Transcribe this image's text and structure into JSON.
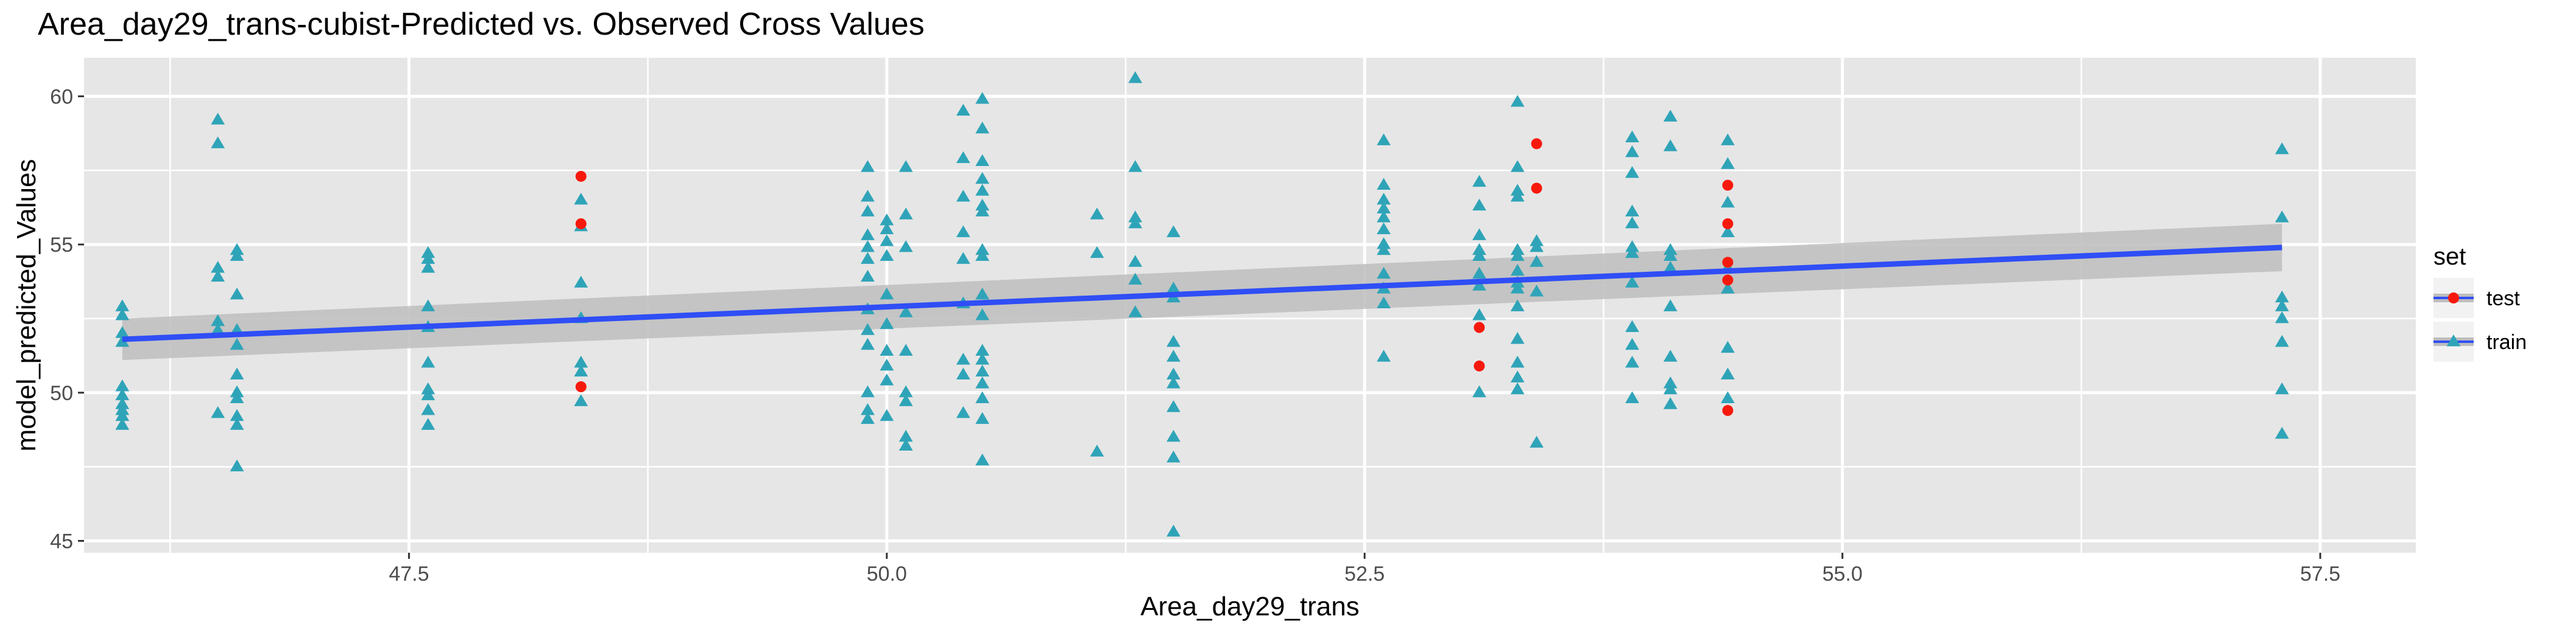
{
  "chart_data": {
    "type": "scatter",
    "title": "Area_day29_trans-cubist-Predicted vs. Observed Cross Values",
    "xlabel": "Area_day29_trans",
    "ylabel": "model_predicted_Values",
    "xlim": [
      45.8,
      58.0
    ],
    "ylim": [
      44.6,
      61.3
    ],
    "x_ticks": [
      47.5,
      50.0,
      52.5,
      55.0,
      57.5
    ],
    "x_tick_labels": [
      "47.5",
      "50.0",
      "52.5",
      "55.0",
      "57.5"
    ],
    "y_ticks": [
      45,
      50,
      55,
      60
    ],
    "y_tick_labels": [
      "45",
      "50",
      "55",
      "60"
    ],
    "grid": true,
    "legend": {
      "title": "set",
      "position": "right",
      "entries": [
        {
          "label": "test",
          "shape": "circle",
          "color": "#f8190d"
        },
        {
          "label": "train",
          "shape": "triangle",
          "color": "#2fa4b8"
        }
      ]
    },
    "colors": {
      "test": "#f8190d",
      "train": "#2fa4b8",
      "trend": "#2f4ef5",
      "band": "#bdbdbd",
      "panel": "#e6e6e6",
      "grid": "#ffffff"
    },
    "trend_line": {
      "x": [
        46.0,
        57.3
      ],
      "y": [
        51.8,
        54.9
      ],
      "ci_lower": [
        51.1,
        54.1
      ],
      "ci_upper": [
        52.5,
        55.7
      ]
    },
    "series": [
      {
        "name": "test",
        "shape": "circle",
        "points": [
          [
            48.4,
            57.3
          ],
          [
            48.4,
            55.7
          ],
          [
            48.4,
            50.2
          ],
          [
            53.1,
            52.2
          ],
          [
            53.1,
            50.9
          ],
          [
            53.4,
            58.4
          ],
          [
            53.4,
            56.9
          ],
          [
            54.4,
            57.0
          ],
          [
            54.4,
            55.7
          ],
          [
            54.4,
            54.4
          ],
          [
            54.4,
            53.8
          ],
          [
            54.4,
            49.4
          ]
        ]
      },
      {
        "name": "train",
        "shape": "triangle",
        "points": [
          [
            46.0,
            52.9
          ],
          [
            46.0,
            52.6
          ],
          [
            46.0,
            52.0
          ],
          [
            46.0,
            51.7
          ],
          [
            46.0,
            50.2
          ],
          [
            46.0,
            49.9
          ],
          [
            46.0,
            49.6
          ],
          [
            46.0,
            49.4
          ],
          [
            46.0,
            49.2
          ],
          [
            46.0,
            48.9
          ],
          [
            46.5,
            59.2
          ],
          [
            46.5,
            58.4
          ],
          [
            46.5,
            54.2
          ],
          [
            46.5,
            53.9
          ],
          [
            46.5,
            52.4
          ],
          [
            46.5,
            52.1
          ],
          [
            46.5,
            49.3
          ],
          [
            46.6,
            54.8
          ],
          [
            46.6,
            54.6
          ],
          [
            46.6,
            53.3
          ],
          [
            46.6,
            52.1
          ],
          [
            46.6,
            51.6
          ],
          [
            46.6,
            50.6
          ],
          [
            46.6,
            50.0
          ],
          [
            46.6,
            49.8
          ],
          [
            46.6,
            49.2
          ],
          [
            46.6,
            48.9
          ],
          [
            46.6,
            47.5
          ],
          [
            47.6,
            54.7
          ],
          [
            47.6,
            54.5
          ],
          [
            47.6,
            54.2
          ],
          [
            47.6,
            52.9
          ],
          [
            47.6,
            52.2
          ],
          [
            47.6,
            51.0
          ],
          [
            47.6,
            50.1
          ],
          [
            47.6,
            49.9
          ],
          [
            47.6,
            49.4
          ],
          [
            47.6,
            48.9
          ],
          [
            48.4,
            56.5
          ],
          [
            48.4,
            55.6
          ],
          [
            48.4,
            53.7
          ],
          [
            48.4,
            52.5
          ],
          [
            48.4,
            51.0
          ],
          [
            48.4,
            50.7
          ],
          [
            48.4,
            49.7
          ],
          [
            49.9,
            57.6
          ],
          [
            49.9,
            56.6
          ],
          [
            49.9,
            56.1
          ],
          [
            49.9,
            55.3
          ],
          [
            49.9,
            54.9
          ],
          [
            49.9,
            54.5
          ],
          [
            49.9,
            53.9
          ],
          [
            49.9,
            52.8
          ],
          [
            49.9,
            52.1
          ],
          [
            49.9,
            51.6
          ],
          [
            49.9,
            50.0
          ],
          [
            49.9,
            49.4
          ],
          [
            49.9,
            49.1
          ],
          [
            50.0,
            55.8
          ],
          [
            50.0,
            55.5
          ],
          [
            50.0,
            55.1
          ],
          [
            50.0,
            54.6
          ],
          [
            50.0,
            53.3
          ],
          [
            50.0,
            52.3
          ],
          [
            50.0,
            51.4
          ],
          [
            50.0,
            50.9
          ],
          [
            50.0,
            50.4
          ],
          [
            50.0,
            49.2
          ],
          [
            50.1,
            57.6
          ],
          [
            50.1,
            56.0
          ],
          [
            50.1,
            54.9
          ],
          [
            50.1,
            52.7
          ],
          [
            50.1,
            51.4
          ],
          [
            50.1,
            50.0
          ],
          [
            50.1,
            49.7
          ],
          [
            50.1,
            48.5
          ],
          [
            50.1,
            48.2
          ],
          [
            50.4,
            59.5
          ],
          [
            50.4,
            57.9
          ],
          [
            50.4,
            56.6
          ],
          [
            50.4,
            55.4
          ],
          [
            50.4,
            54.5
          ],
          [
            50.4,
            53.0
          ],
          [
            50.4,
            51.1
          ],
          [
            50.4,
            50.6
          ],
          [
            50.4,
            49.3
          ],
          [
            50.5,
            59.9
          ],
          [
            50.5,
            58.9
          ],
          [
            50.5,
            57.8
          ],
          [
            50.5,
            57.2
          ],
          [
            50.5,
            56.8
          ],
          [
            50.5,
            56.3
          ],
          [
            50.5,
            56.1
          ],
          [
            50.5,
            54.8
          ],
          [
            50.5,
            54.6
          ],
          [
            50.5,
            53.3
          ],
          [
            50.5,
            52.6
          ],
          [
            50.5,
            51.4
          ],
          [
            50.5,
            51.1
          ],
          [
            50.5,
            50.7
          ],
          [
            50.5,
            50.3
          ],
          [
            50.5,
            49.8
          ],
          [
            50.5,
            49.1
          ],
          [
            50.5,
            47.7
          ],
          [
            51.1,
            56.0
          ],
          [
            51.1,
            54.7
          ],
          [
            51.1,
            48.0
          ],
          [
            51.3,
            60.6
          ],
          [
            51.3,
            57.6
          ],
          [
            51.3,
            55.9
          ],
          [
            51.3,
            55.7
          ],
          [
            51.3,
            54.4
          ],
          [
            51.3,
            53.8
          ],
          [
            51.3,
            52.7
          ],
          [
            51.5,
            55.4
          ],
          [
            51.5,
            53.5
          ],
          [
            51.5,
            53.2
          ],
          [
            51.5,
            51.7
          ],
          [
            51.5,
            51.2
          ],
          [
            51.5,
            50.6
          ],
          [
            51.5,
            50.3
          ],
          [
            51.5,
            49.5
          ],
          [
            51.5,
            48.5
          ],
          [
            51.5,
            47.8
          ],
          [
            51.5,
            45.3
          ],
          [
            52.6,
            58.5
          ],
          [
            52.6,
            57.0
          ],
          [
            52.6,
            56.5
          ],
          [
            52.6,
            56.2
          ],
          [
            52.6,
            55.9
          ],
          [
            52.6,
            55.5
          ],
          [
            52.6,
            55.0
          ],
          [
            52.6,
            54.8
          ],
          [
            52.6,
            54.0
          ],
          [
            52.6,
            53.5
          ],
          [
            52.6,
            53.0
          ],
          [
            52.6,
            51.2
          ],
          [
            53.1,
            57.1
          ],
          [
            53.1,
            56.3
          ],
          [
            53.1,
            55.3
          ],
          [
            53.1,
            54.8
          ],
          [
            53.1,
            54.6
          ],
          [
            53.1,
            54.0
          ],
          [
            53.1,
            53.6
          ],
          [
            53.1,
            52.6
          ],
          [
            53.1,
            50.0
          ],
          [
            53.3,
            59.8
          ],
          [
            53.3,
            57.6
          ],
          [
            53.3,
            56.8
          ],
          [
            53.3,
            56.6
          ],
          [
            53.3,
            54.8
          ],
          [
            53.3,
            54.6
          ],
          [
            53.3,
            54.1
          ],
          [
            53.3,
            53.7
          ],
          [
            53.3,
            53.5
          ],
          [
            53.3,
            52.9
          ],
          [
            53.3,
            51.8
          ],
          [
            53.3,
            51.0
          ],
          [
            53.3,
            50.5
          ],
          [
            53.3,
            50.1
          ],
          [
            53.4,
            55.1
          ],
          [
            53.4,
            54.9
          ],
          [
            53.4,
            54.4
          ],
          [
            53.4,
            53.4
          ],
          [
            53.4,
            48.3
          ],
          [
            53.9,
            58.6
          ],
          [
            53.9,
            58.1
          ],
          [
            53.9,
            57.4
          ],
          [
            53.9,
            56.1
          ],
          [
            53.9,
            55.7
          ],
          [
            53.9,
            54.9
          ],
          [
            53.9,
            54.7
          ],
          [
            53.9,
            53.7
          ],
          [
            53.9,
            52.2
          ],
          [
            53.9,
            51.6
          ],
          [
            53.9,
            51.0
          ],
          [
            53.9,
            49.8
          ],
          [
            54.1,
            59.3
          ],
          [
            54.1,
            58.3
          ],
          [
            54.1,
            54.8
          ],
          [
            54.1,
            54.6
          ],
          [
            54.1,
            54.2
          ],
          [
            54.1,
            52.9
          ],
          [
            54.1,
            51.2
          ],
          [
            54.1,
            50.3
          ],
          [
            54.1,
            50.1
          ],
          [
            54.1,
            49.6
          ],
          [
            54.4,
            58.5
          ],
          [
            54.4,
            57.7
          ],
          [
            54.4,
            56.4
          ],
          [
            54.4,
            55.4
          ],
          [
            54.4,
            54.2
          ],
          [
            54.4,
            53.5
          ],
          [
            54.4,
            51.5
          ],
          [
            54.4,
            50.6
          ],
          [
            54.4,
            49.8
          ],
          [
            57.3,
            58.2
          ],
          [
            57.3,
            55.9
          ],
          [
            57.3,
            53.2
          ],
          [
            57.3,
            52.9
          ],
          [
            57.3,
            52.5
          ],
          [
            57.3,
            51.7
          ],
          [
            57.3,
            50.1
          ],
          [
            57.3,
            48.6
          ]
        ]
      }
    ]
  }
}
